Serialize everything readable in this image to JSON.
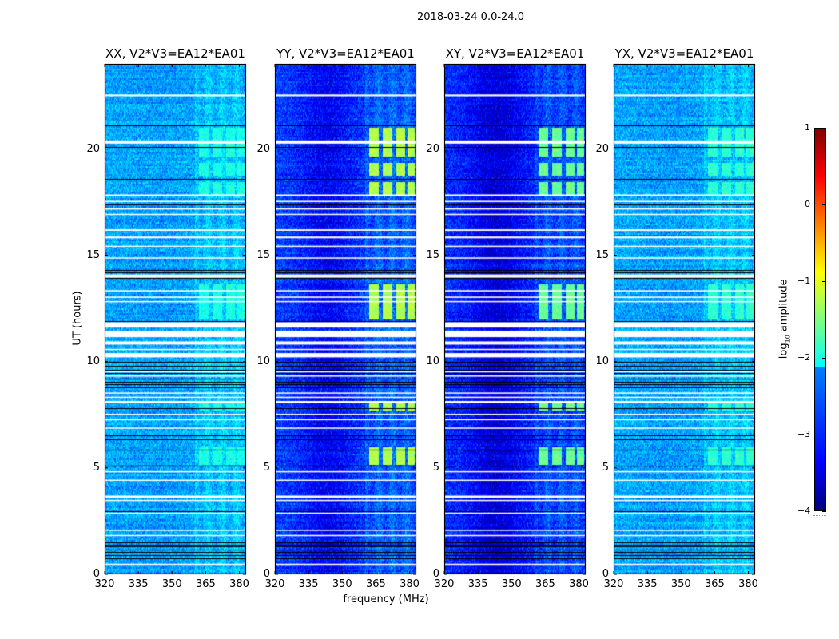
{
  "chart_data": {
    "type": "heatmap",
    "title": "2018-03-24 0.0-24.0",
    "xlabel": "frequency (MHz)",
    "ylabel": "UT (hours)",
    "xlim": [
      320,
      383
    ],
    "ylim": [
      0,
      24
    ],
    "xticks": [
      "320",
      "335",
      "350",
      "365",
      "380"
    ],
    "xtick_values": [
      320,
      335,
      350,
      365,
      380
    ],
    "yticks": [
      "0",
      "5",
      "10",
      "15",
      "20"
    ],
    "ytick_values": [
      0,
      5,
      10,
      15,
      20
    ],
    "colormap": "jet",
    "colorbar": {
      "label_main": "log",
      "label_sub": "10",
      "label_rest": " amplitude",
      "range": [
        -4,
        1
      ],
      "ticks": [
        "1",
        "0",
        "−1",
        "−2",
        "−3",
        "−4"
      ],
      "tick_values": [
        1,
        0,
        -1,
        -2,
        -3,
        -4
      ]
    },
    "panels": [
      {
        "title": "XX, V2*V3=EA12*EA01",
        "base_log": -2.55,
        "dark_dip": 0.05,
        "rfi_level": -2.0
      },
      {
        "title": "YY, V2*V3=EA12*EA01",
        "base_log": -3.05,
        "dark_dip": 0.35,
        "rfi_level": -1.25
      },
      {
        "title": "XY, V2*V3=EA12*EA01",
        "base_log": -3.15,
        "dark_dip": 0.4,
        "rfi_level": -1.6
      },
      {
        "title": "YX, V2*V3=EA12*EA01",
        "base_log": -2.55,
        "dark_dip": 0.05,
        "rfi_level": -1.9
      }
    ],
    "rfi_channels_mhz": [
      [
        362,
        366
      ],
      [
        368,
        372
      ],
      [
        374,
        378
      ],
      [
        379,
        382
      ]
    ],
    "rfi_hours": [
      [
        12.0,
        13.7
      ],
      [
        17.9,
        18.5
      ],
      [
        18.8,
        19.4
      ],
      [
        19.7,
        21.0
      ],
      [
        5.2,
        6.0
      ],
      [
        7.7,
        8.1
      ]
    ],
    "flagged_hours": [
      [
        22.48,
        22.56
      ],
      [
        20.25,
        20.4
      ],
      [
        17.78,
        17.86
      ],
      [
        17.5,
        17.56
      ],
      [
        17.15,
        17.22
      ],
      [
        16.9,
        16.95
      ],
      [
        16.15,
        16.22
      ],
      [
        15.8,
        15.88
      ],
      [
        15.4,
        15.45
      ],
      [
        14.85,
        14.9
      ],
      [
        13.95,
        14.1
      ],
      [
        13.3,
        13.36
      ],
      [
        13.0,
        13.06
      ],
      [
        12.8,
        12.85
      ],
      [
        11.6,
        11.85
      ],
      [
        11.15,
        11.45
      ],
      [
        10.8,
        10.95
      ],
      [
        10.55,
        10.6
      ],
      [
        10.2,
        10.4
      ],
      [
        9.5,
        9.55
      ],
      [
        9.3,
        9.35
      ],
      [
        8.5,
        8.55
      ],
      [
        8.3,
        8.35
      ],
      [
        8.05,
        8.15
      ],
      [
        7.5,
        7.55
      ],
      [
        7.25,
        7.3
      ],
      [
        6.85,
        6.9
      ],
      [
        4.8,
        4.85
      ],
      [
        4.4,
        4.45
      ],
      [
        3.6,
        3.7
      ],
      [
        3.45,
        3.5
      ],
      [
        2.85,
        2.9
      ],
      [
        2.05,
        2.1
      ],
      [
        1.8,
        1.85
      ],
      [
        0.45,
        0.5
      ]
    ],
    "scan_boundaries_hours": [
      21.1,
      20.1,
      18.6,
      17.4,
      14.3,
      14.2,
      13.95,
      11.9,
      10.0,
      9.8,
      9.6,
      9.45,
      9.2,
      9.05,
      8.95,
      8.8,
      7.8,
      6.55,
      6.35,
      5.85,
      5.1,
      2.95,
      1.5,
      1.4,
      1.3,
      1.15,
      1.05,
      0.9,
      0.75,
      0.05
    ]
  }
}
